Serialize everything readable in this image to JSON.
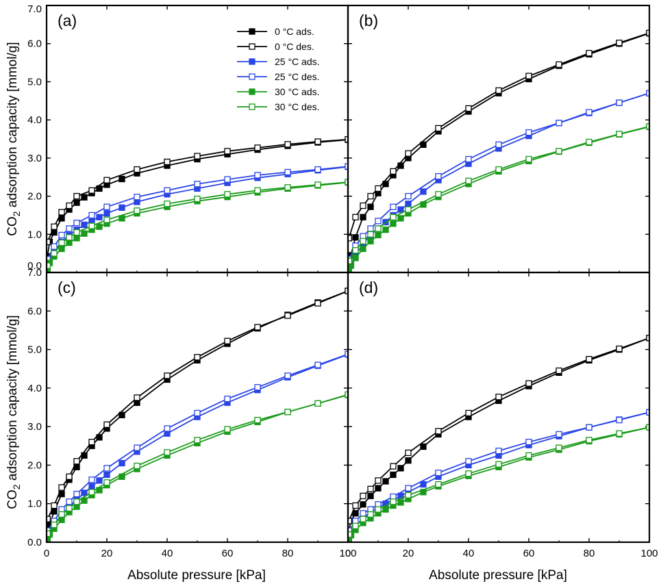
{
  "figure": {
    "ylabel_main": "CO",
    "ylabel_sub": "2",
    "ylabel_rest": " adsorption capacity [mmol/g]",
    "xlabel": "Absolute pressure [kPa]",
    "colors": {
      "black": "#000000",
      "blue": "#2a45e6",
      "green": "#1a9a1a"
    }
  },
  "chart_data": [
    {
      "panel": "(a)",
      "type": "line",
      "xlim": [
        0,
        100
      ],
      "ylim": [
        0,
        7
      ],
      "xticks": [
        "0",
        "20",
        "40",
        "60",
        "80",
        "100"
      ],
      "yticks": [
        "0.0",
        "1.0",
        "2.0",
        "3.0",
        "4.0",
        "5.0",
        "6.0",
        "7.0"
      ],
      "legend_position": "top-center",
      "series": [
        {
          "name": "0 °C ads.",
          "color": "black",
          "marker": "filled-square",
          "x": [
            0.3,
            1,
            2.5,
            5,
            7.5,
            10,
            12.5,
            15,
            17.5,
            20,
            25,
            30,
            40,
            50,
            60,
            70,
            80,
            90,
            100
          ],
          "y": [
            0.42,
            0.8,
            1.05,
            1.42,
            1.65,
            1.83,
            1.97,
            2.08,
            2.2,
            2.3,
            2.45,
            2.6,
            2.8,
            2.97,
            3.1,
            3.22,
            3.32,
            3.41,
            3.48
          ]
        },
        {
          "name": "0 °C des.",
          "color": "black",
          "marker": "open-square",
          "x": [
            0.3,
            2.5,
            5,
            7.5,
            10,
            15,
            20,
            30,
            40,
            50,
            60,
            70,
            80,
            90,
            100
          ],
          "y": [
            0.8,
            1.2,
            1.58,
            1.75,
            2.0,
            2.15,
            2.42,
            2.7,
            2.9,
            3.05,
            3.18,
            3.27,
            3.36,
            3.43,
            3.49
          ]
        },
        {
          "name": "25 °C ads.",
          "color": "blue",
          "marker": "filled-square",
          "x": [
            0.3,
            1,
            2.5,
            5,
            7.5,
            10,
            12.5,
            15,
            17.5,
            20,
            25,
            30,
            40,
            50,
            60,
            70,
            80,
            90,
            100
          ],
          "y": [
            0.18,
            0.35,
            0.55,
            0.8,
            0.98,
            1.12,
            1.25,
            1.35,
            1.45,
            1.55,
            1.7,
            1.85,
            2.05,
            2.2,
            2.35,
            2.48,
            2.58,
            2.68,
            2.77
          ]
        },
        {
          "name": "25 °C des.",
          "color": "blue",
          "marker": "open-square",
          "x": [
            0.3,
            2.5,
            5,
            7.5,
            10,
            15,
            20,
            30,
            40,
            50,
            60,
            70,
            80,
            90,
            100
          ],
          "y": [
            0.35,
            0.68,
            0.98,
            1.15,
            1.3,
            1.5,
            1.72,
            1.98,
            2.15,
            2.32,
            2.44,
            2.55,
            2.63,
            2.7,
            2.78
          ]
        },
        {
          "name": "30 °C ads.",
          "color": "green",
          "marker": "filled-square",
          "x": [
            0.3,
            1,
            2.5,
            5,
            7.5,
            10,
            12.5,
            15,
            17.5,
            20,
            25,
            30,
            40,
            50,
            60,
            70,
            80,
            90,
            100
          ],
          "y": [
            0.1,
            0.25,
            0.42,
            0.62,
            0.78,
            0.9,
            1.02,
            1.12,
            1.2,
            1.28,
            1.42,
            1.55,
            1.72,
            1.87,
            1.98,
            2.1,
            2.2,
            2.28,
            2.36
          ]
        },
        {
          "name": "30 °C des.",
          "color": "green",
          "marker": "open-square",
          "x": [
            0.3,
            2.5,
            5,
            7.5,
            10,
            15,
            20,
            30,
            40,
            50,
            60,
            70,
            80,
            90,
            100
          ],
          "y": [
            0.18,
            0.5,
            0.78,
            0.92,
            1.05,
            1.22,
            1.38,
            1.62,
            1.8,
            1.93,
            2.05,
            2.15,
            2.23,
            2.3,
            2.37
          ]
        }
      ]
    },
    {
      "panel": "(b)",
      "type": "line",
      "xlim": [
        0,
        100
      ],
      "ylim": [
        0,
        7
      ],
      "xticks": [
        "0",
        "20",
        "40",
        "60",
        "80",
        "100"
      ],
      "yticks": [],
      "series": [
        {
          "name": "0 °C ads.",
          "color": "black",
          "marker": "filled-square",
          "x": [
            0.3,
            1,
            2.5,
            5,
            7.5,
            10,
            12.5,
            15,
            17.5,
            20,
            25,
            30,
            40,
            50,
            60,
            70,
            80,
            90,
            100
          ],
          "y": [
            0.1,
            0.45,
            0.92,
            1.45,
            1.72,
            2.08,
            2.32,
            2.55,
            2.8,
            3.0,
            3.35,
            3.7,
            4.22,
            4.7,
            5.07,
            5.42,
            5.72,
            6.0,
            6.27
          ]
        },
        {
          "name": "0 °C des.",
          "color": "black",
          "marker": "open-square",
          "x": [
            0.3,
            2.5,
            5,
            7.5,
            10,
            15,
            20,
            30,
            40,
            50,
            60,
            70,
            80,
            90,
            100
          ],
          "y": [
            0.9,
            1.45,
            1.75,
            2.0,
            2.2,
            2.65,
            3.12,
            3.78,
            4.3,
            4.77,
            5.15,
            5.45,
            5.75,
            6.02,
            6.28
          ]
        },
        {
          "name": "25 °C ads.",
          "color": "blue",
          "marker": "filled-square",
          "x": [
            0.3,
            1,
            2.5,
            5,
            7.5,
            10,
            12.5,
            15,
            17.5,
            20,
            25,
            30,
            40,
            50,
            60,
            70,
            80,
            90,
            100
          ],
          "y": [
            0.05,
            0.2,
            0.45,
            0.75,
            0.98,
            1.15,
            1.32,
            1.5,
            1.65,
            1.8,
            2.12,
            2.42,
            2.85,
            3.25,
            3.58,
            3.92,
            4.18,
            4.45,
            4.7
          ]
        },
        {
          "name": "25 °C des.",
          "color": "blue",
          "marker": "open-square",
          "x": [
            0.3,
            2.5,
            5,
            7.5,
            10,
            15,
            20,
            30,
            40,
            50,
            60,
            70,
            80,
            90,
            100
          ],
          "y": [
            0.35,
            0.7,
            0.95,
            1.15,
            1.35,
            1.72,
            2.0,
            2.52,
            2.97,
            3.35,
            3.67,
            3.92,
            4.2,
            4.45,
            4.7
          ]
        },
        {
          "name": "30 °C ads.",
          "color": "green",
          "marker": "filled-square",
          "x": [
            0.3,
            1,
            2.5,
            5,
            7.5,
            10,
            12.5,
            15,
            17.5,
            20,
            25,
            30,
            40,
            50,
            60,
            70,
            80,
            90,
            100
          ],
          "y": [
            0.05,
            0.18,
            0.38,
            0.62,
            0.82,
            0.98,
            1.12,
            1.28,
            1.42,
            1.55,
            1.78,
            1.98,
            2.32,
            2.65,
            2.92,
            3.17,
            3.4,
            3.62,
            3.82
          ]
        },
        {
          "name": "30 °C des.",
          "color": "green",
          "marker": "open-square",
          "x": [
            0.3,
            2.5,
            5,
            7.5,
            10,
            15,
            20,
            30,
            40,
            50,
            60,
            70,
            80,
            90,
            100
          ],
          "y": [
            0.3,
            0.58,
            0.82,
            1.0,
            1.15,
            1.45,
            1.65,
            2.05,
            2.4,
            2.7,
            2.97,
            3.18,
            3.42,
            3.63,
            3.83
          ]
        }
      ]
    },
    {
      "panel": "(c)",
      "type": "line",
      "xlim": [
        0,
        100
      ],
      "ylim": [
        0,
        7
      ],
      "xticks": [
        "0",
        "20",
        "40",
        "60",
        "80",
        "100"
      ],
      "yticks": [
        "0.0",
        "1.0",
        "2.0",
        "3.0",
        "4.0",
        "5.0",
        "6.0",
        "7.0"
      ],
      "series": [
        {
          "name": "0 °C ads.",
          "color": "black",
          "marker": "filled-square",
          "x": [
            0.3,
            1,
            2.5,
            5,
            7.5,
            10,
            12.5,
            15,
            17.5,
            20,
            25,
            30,
            40,
            50,
            60,
            70,
            80,
            90,
            100
          ],
          "y": [
            0.25,
            0.45,
            0.8,
            1.25,
            1.62,
            1.95,
            2.25,
            2.5,
            2.72,
            2.95,
            3.3,
            3.62,
            4.22,
            4.72,
            5.15,
            5.55,
            5.9,
            6.22,
            6.52
          ]
        },
        {
          "name": "0 °C des.",
          "color": "black",
          "marker": "open-square",
          "x": [
            0.3,
            2.5,
            5,
            7.5,
            10,
            15,
            20,
            30,
            40,
            50,
            60,
            70,
            80,
            90,
            100
          ],
          "y": [
            0.6,
            0.95,
            1.42,
            1.7,
            2.1,
            2.6,
            3.05,
            3.75,
            4.32,
            4.8,
            5.22,
            5.58,
            5.88,
            6.2,
            6.52
          ]
        },
        {
          "name": "25 °C ads.",
          "color": "blue",
          "marker": "filled-square",
          "x": [
            0.3,
            1,
            2.5,
            5,
            7.5,
            10,
            12.5,
            15,
            17.5,
            20,
            25,
            30,
            40,
            50,
            60,
            70,
            80,
            90,
            100
          ],
          "y": [
            0.1,
            0.28,
            0.45,
            0.7,
            0.92,
            1.1,
            1.28,
            1.45,
            1.6,
            1.75,
            2.05,
            2.35,
            2.82,
            3.25,
            3.62,
            3.95,
            4.28,
            4.58,
            4.87
          ]
        },
        {
          "name": "25 °C des.",
          "color": "blue",
          "marker": "open-square",
          "x": [
            0.3,
            2.5,
            5,
            7.5,
            10,
            15,
            20,
            30,
            40,
            50,
            60,
            70,
            80,
            90,
            100
          ],
          "y": [
            0.3,
            0.55,
            0.85,
            1.05,
            1.25,
            1.62,
            1.92,
            2.45,
            2.95,
            3.35,
            3.72,
            4.02,
            4.32,
            4.6,
            4.88
          ]
        },
        {
          "name": "30 °C ads.",
          "color": "green",
          "marker": "filled-square",
          "x": [
            0.3,
            1,
            2.5,
            5,
            7.5,
            10,
            12.5,
            15,
            17.5,
            20,
            25,
            30,
            40,
            50,
            60,
            70,
            80,
            90,
            100
          ],
          "y": [
            0.05,
            0.2,
            0.35,
            0.58,
            0.78,
            0.92,
            1.08,
            1.22,
            1.35,
            1.48,
            1.7,
            1.9,
            2.25,
            2.57,
            2.87,
            3.12,
            3.38,
            3.6,
            3.82
          ]
        },
        {
          "name": "30 °C des.",
          "color": "green",
          "marker": "open-square",
          "x": [
            0.3,
            2.5,
            5,
            7.5,
            10,
            15,
            20,
            30,
            40,
            50,
            60,
            70,
            80,
            90,
            100
          ],
          "y": [
            0.22,
            0.45,
            0.72,
            0.88,
            1.05,
            1.3,
            1.55,
            1.98,
            2.33,
            2.65,
            2.93,
            3.17,
            3.38,
            3.6,
            3.83
          ]
        }
      ]
    },
    {
      "panel": "(d)",
      "type": "line",
      "xlim": [
        0,
        100
      ],
      "ylim": [
        0,
        7
      ],
      "xticks": [
        "0",
        "20",
        "40",
        "60",
        "80",
        "100"
      ],
      "yticks": [],
      "series": [
        {
          "name": "0 °C ads.",
          "color": "black",
          "marker": "filled-square",
          "x": [
            0.3,
            1,
            2.5,
            5,
            7.5,
            10,
            12.5,
            15,
            17.5,
            20,
            25,
            30,
            40,
            50,
            60,
            70,
            80,
            90,
            100
          ],
          "y": [
            0.3,
            0.55,
            0.75,
            0.98,
            1.2,
            1.4,
            1.58,
            1.75,
            1.92,
            2.12,
            2.48,
            2.8,
            3.25,
            3.67,
            4.05,
            4.4,
            4.72,
            5.0,
            5.3
          ]
        },
        {
          "name": "0 °C des.",
          "color": "black",
          "marker": "open-square",
          "x": [
            0.3,
            2.5,
            5,
            7.5,
            10,
            15,
            20,
            30,
            40,
            50,
            60,
            70,
            80,
            90,
            100
          ],
          "y": [
            0.55,
            0.95,
            1.2,
            1.38,
            1.6,
            1.97,
            2.32,
            2.88,
            3.35,
            3.77,
            4.12,
            4.45,
            4.75,
            5.02,
            5.3
          ]
        },
        {
          "name": "25 °C ads.",
          "color": "blue",
          "marker": "filled-square",
          "x": [
            0.3,
            1,
            2.5,
            5,
            7.5,
            10,
            12.5,
            15,
            17.5,
            20,
            25,
            30,
            40,
            50,
            60,
            70,
            80,
            90,
            100
          ],
          "y": [
            0.1,
            0.25,
            0.42,
            0.62,
            0.78,
            0.9,
            1.0,
            1.1,
            1.2,
            1.3,
            1.5,
            1.7,
            2.0,
            2.25,
            2.52,
            2.75,
            2.98,
            3.18,
            3.37
          ]
        },
        {
          "name": "25 °C des.",
          "color": "blue",
          "marker": "open-square",
          "x": [
            0.3,
            2.5,
            5,
            7.5,
            10,
            15,
            20,
            30,
            40,
            50,
            60,
            70,
            80,
            90,
            100
          ],
          "y": [
            0.3,
            0.55,
            0.75,
            0.85,
            0.98,
            1.18,
            1.4,
            1.8,
            2.1,
            2.37,
            2.6,
            2.8,
            2.98,
            3.17,
            3.37
          ]
        },
        {
          "name": "30 °C ads.",
          "color": "green",
          "marker": "filled-square",
          "x": [
            0.3,
            1,
            2.5,
            5,
            7.5,
            10,
            12.5,
            15,
            17.5,
            20,
            25,
            30,
            40,
            50,
            60,
            70,
            80,
            90,
            100
          ],
          "y": [
            0.05,
            0.18,
            0.32,
            0.5,
            0.62,
            0.75,
            0.85,
            0.95,
            1.03,
            1.12,
            1.3,
            1.45,
            1.72,
            1.95,
            2.2,
            2.4,
            2.62,
            2.8,
            2.98
          ]
        },
        {
          "name": "30 °C des.",
          "color": "green",
          "marker": "open-square",
          "x": [
            0.3,
            2.5,
            5,
            7.5,
            10,
            15,
            20,
            30,
            40,
            50,
            60,
            70,
            80,
            90,
            100
          ],
          "y": [
            0.2,
            0.42,
            0.6,
            0.72,
            0.85,
            1.05,
            1.22,
            1.5,
            1.78,
            2.02,
            2.25,
            2.45,
            2.65,
            2.82,
            2.98
          ]
        }
      ]
    }
  ]
}
